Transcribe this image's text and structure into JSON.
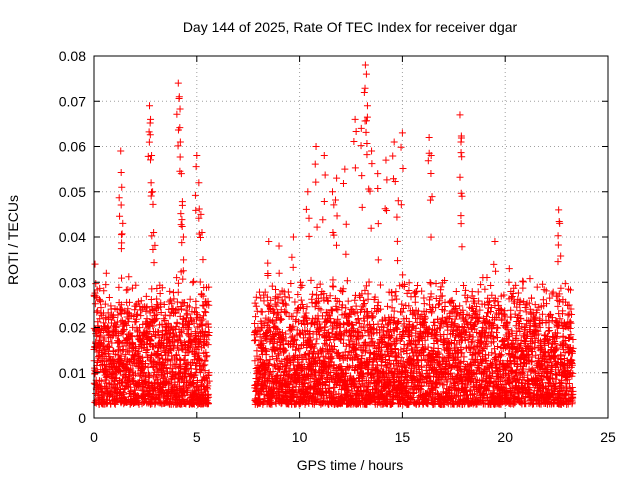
{
  "chart_data": {
    "type": "scatter",
    "title": "Day 144 of 2025, Rate Of TEC Index for receiver dgar",
    "xlabel": "GPS time / hours",
    "ylabel": "ROTI / TECUs",
    "xlim": [
      0,
      25
    ],
    "ylim": [
      0,
      0.08
    ],
    "x_ticks": [
      0,
      5,
      10,
      15,
      20,
      25
    ],
    "x_tick_labels": [
      "0",
      "5",
      "10",
      "15",
      "20",
      "25"
    ],
    "y_ticks": [
      0,
      0.01,
      0.02,
      0.03,
      0.04,
      0.05,
      0.06,
      0.07,
      0.08
    ],
    "y_tick_labels": [
      "0",
      "0.01",
      "0.02",
      "0.03",
      "0.04",
      "0.05",
      "0.06",
      "0.07",
      "0.08"
    ],
    "grid": true,
    "marker": "+",
    "color": "#ff0000",
    "data_gap_hours": [
      5.6,
      7.8
    ],
    "series": [
      {
        "name": "ROTI",
        "x": [
          0.05,
          0.6,
          1.3,
          1.35,
          1.4,
          2.7,
          2.75,
          2.8,
          2.85,
          2.9,
          4.1,
          4.15,
          4.2,
          4.25,
          4.3,
          4.35,
          5.0,
          5.1,
          5.2,
          5.3,
          8.5,
          9.0,
          9.7,
          10.4,
          10.8,
          11.2,
          11.6,
          11.8,
          12.2,
          12.7,
          13.0,
          13.2,
          13.25,
          13.3,
          13.5,
          13.8,
          14.2,
          14.6,
          14.8,
          15.0,
          16.3,
          16.4,
          17.8,
          17.85,
          17.9,
          19.5,
          20.2,
          22.6,
          22.65
        ],
        "y": [
          0.034,
          0.032,
          0.059,
          0.051,
          0.043,
          0.069,
          0.066,
          0.058,
          0.05,
          0.041,
          0.074,
          0.071,
          0.061,
          0.054,
          0.047,
          0.04,
          0.058,
          0.052,
          0.045,
          0.035,
          0.039,
          0.038,
          0.04,
          0.05,
          0.06,
          0.058,
          0.05,
          0.053,
          0.055,
          0.066,
          0.064,
          0.078,
          0.076,
          0.069,
          0.059,
          0.054,
          0.057,
          0.061,
          0.048,
          0.063,
          0.062,
          0.058,
          0.067,
          0.061,
          0.049,
          0.039,
          0.033,
          0.046,
          0.043
        ]
      }
    ],
    "dense_band": [
      {
        "x_start": 0.0,
        "x_end": 5.6,
        "y_low": 0.003,
        "y_high": 0.027
      },
      {
        "x_start": 7.8,
        "x_end": 23.3,
        "y_low": 0.003,
        "y_high": 0.027
      }
    ]
  }
}
